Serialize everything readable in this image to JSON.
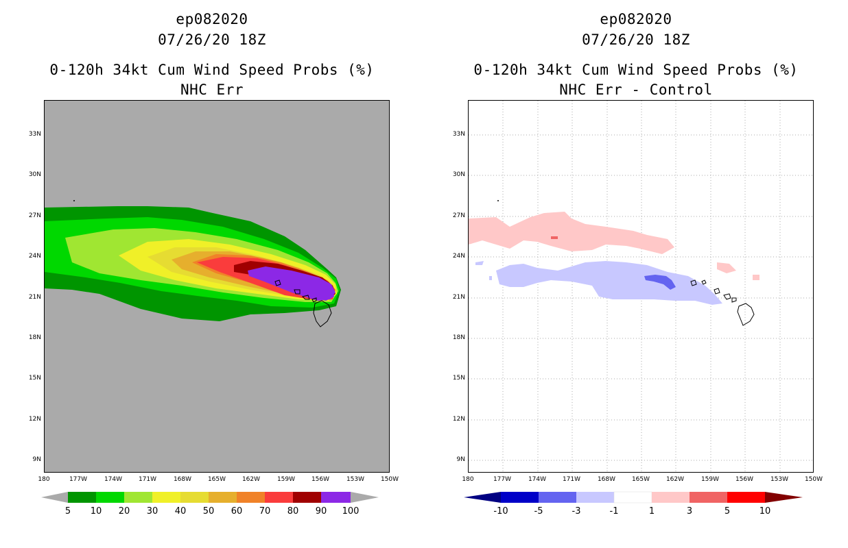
{
  "left_panel": {
    "storm_id": "ep082020",
    "datetime": "07/26/20 18Z",
    "product": "0-120h 34kt Cum Wind Speed Probs (%)",
    "subtitle": "NHC Err",
    "background_color": "#aaaaaa",
    "colorbar": {
      "labels": [
        "5",
        "10",
        "20",
        "30",
        "40",
        "50",
        "60",
        "70",
        "80",
        "90",
        "100"
      ],
      "colors": [
        "#009500",
        "#00d800",
        "#a0e632",
        "#f0f028",
        "#e6dc32",
        "#e6af2d",
        "#f08228",
        "#fa3c3c",
        "#a00000",
        "#8c28e6"
      ],
      "end_color": "#aaaaaa"
    }
  },
  "right_panel": {
    "storm_id": "ep082020",
    "datetime": "07/26/20 18Z",
    "product": "0-120h 34kt Cum Wind Speed Probs (%)",
    "subtitle": "NHC Err - Control",
    "colorbar": {
      "labels": [
        "-10",
        "-5",
        "-3",
        "-1",
        "1",
        "3",
        "5",
        "10"
      ],
      "colors": [
        "#0000c8",
        "#6464f0",
        "#c8c8ff",
        "#ffffff",
        "#ffc8c8",
        "#f06464",
        "#ff0000"
      ],
      "left_end_color": "#000082",
      "right_end_color": "#820000"
    }
  },
  "axes": {
    "lat_labels": [
      "33N",
      "30N",
      "27N",
      "24N",
      "21N",
      "18N",
      "15N",
      "12N",
      "9N"
    ],
    "lon_labels": [
      "180",
      "177W",
      "174W",
      "171W",
      "168W",
      "165W",
      "162W",
      "159W",
      "156W",
      "153W",
      "150W"
    ]
  }
}
